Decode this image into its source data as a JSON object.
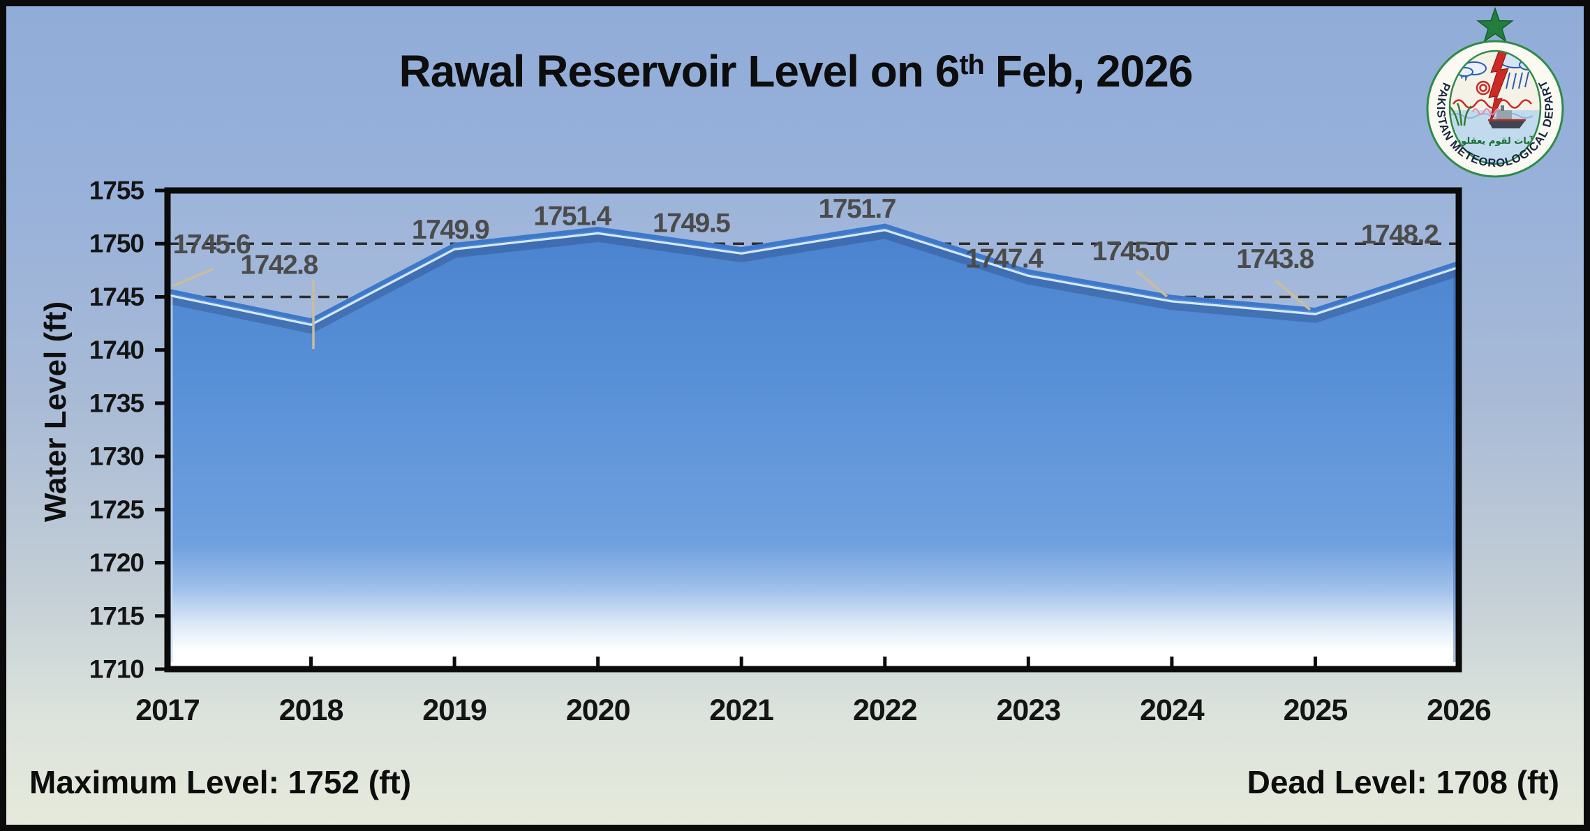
{
  "title": {
    "text": "Rawal Reservoir Level on 6th Feb, 2026",
    "prefix": "Rawal Reservoir Level on 6",
    "superscript": "th",
    "suffix": "Feb, 2026"
  },
  "y_axis_title": "Water Level (ft)",
  "footer": {
    "max_level": "Maximum Level: 1752 (ft)",
    "dead_level": "Dead Level: 1708 (ft)"
  },
  "logo": {
    "organization": "PAKISTAN METEOROLOGICAL DEPARTMENT",
    "inscription": "لآيات لقوم يعقلون"
  },
  "chart_data": {
    "type": "area",
    "title": "Rawal Reservoir Level on 6th Feb, 2026",
    "categories": [
      "2017",
      "2018",
      "2019",
      "2020",
      "2021",
      "2022",
      "2023",
      "2024",
      "2025",
      "2026"
    ],
    "values": [
      1745.6,
      1742.8,
      1749.9,
      1751.4,
      1749.5,
      1751.7,
      1747.4,
      1745.0,
      1743.8,
      1748.2
    ],
    "series_name": "Water Level (ft)",
    "xlabel": "",
    "ylabel": "Water Level (ft)",
    "ylim": [
      1710,
      1755
    ],
    "yticks": [
      1710,
      1715,
      1720,
      1725,
      1730,
      1735,
      1740,
      1745,
      1750,
      1755
    ],
    "dashed_gridlines": [
      1750,
      1745
    ],
    "grid": "horizontal dashed lines at 1745 and 1750 only",
    "legend": "none",
    "data_labels_visible": true,
    "annotations": {
      "maximum_level_ft": 1752,
      "dead_level_ft": 1708
    }
  },
  "colors": {
    "background_top": "#90ACD8",
    "background_bottom": "#E6EADB",
    "area_fill_top": "#4B82CE",
    "area_fill_mid": "#5E94DB",
    "area_fill_bottom": "#FFFFFF",
    "area_edge": "#3D78CA",
    "area_edge_highlight": "#E2F2FF",
    "gridline": "#2D2D2D",
    "leader_line": "#C9BD9E",
    "data_label": "#4B4B4B",
    "axis": "#0B0B0B",
    "logo_green": "#2E8B46",
    "logo_red": "#CC2A24"
  }
}
